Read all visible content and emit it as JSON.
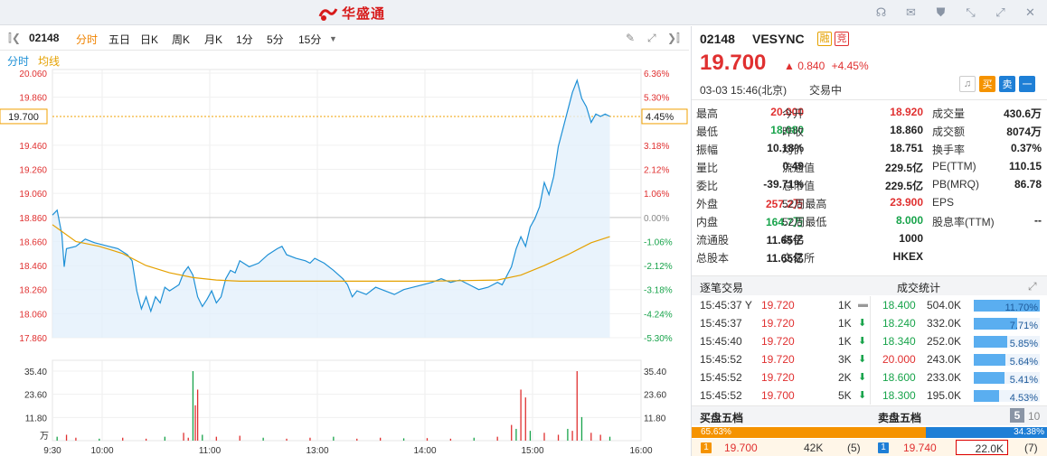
{
  "app": {
    "title": "华盛通"
  },
  "toolbar": {
    "code": "02148",
    "tabs": [
      "分时",
      "五日",
      "日K",
      "周K",
      "月K",
      "1分",
      "5分",
      "15分"
    ],
    "active_tab": "分时"
  },
  "chart_legend": {
    "line": "分时",
    "avg": "均线"
  },
  "chart_data": {
    "type": "line",
    "price_axis": [
      "20.060",
      "19.860",
      "19.460",
      "19.260",
      "19.060",
      "18.860",
      "18.660",
      "18.460",
      "18.260",
      "18.060",
      "17.860"
    ],
    "pct_axis": [
      "6.36%",
      "5.30%",
      "3.18%",
      "2.12%",
      "1.06%",
      "0.00%",
      "-1.06%",
      "-2.12%",
      "-3.18%",
      "-4.24%",
      "-5.30%"
    ],
    "current_price_label": "19.700",
    "current_pct_label": "4.45%",
    "prev_close": 18.86,
    "ylim": [
      17.86,
      20.06
    ],
    "vol_axis": [
      "35.40",
      "23.60",
      "11.80"
    ],
    "vol_unit": "万",
    "time_labels": [
      "9:30",
      "10:00",
      "11:00",
      "13:00",
      "14:00",
      "15:00",
      "16:00"
    ],
    "price_series": [
      [
        0,
        18.88
      ],
      [
        2,
        18.92
      ],
      [
        4,
        18.72
      ],
      [
        5,
        18.45
      ],
      [
        6,
        18.6
      ],
      [
        10,
        18.62
      ],
      [
        14,
        18.68
      ],
      [
        18,
        18.65
      ],
      [
        24,
        18.62
      ],
      [
        28,
        18.6
      ],
      [
        32,
        18.55
      ],
      [
        34,
        18.5
      ],
      [
        36,
        18.25
      ],
      [
        38,
        18.1
      ],
      [
        40,
        18.2
      ],
      [
        42,
        18.08
      ],
      [
        44,
        18.2
      ],
      [
        46,
        18.15
      ],
      [
        48,
        18.28
      ],
      [
        50,
        18.25
      ],
      [
        54,
        18.3
      ],
      [
        56,
        18.4
      ],
      [
        58,
        18.45
      ],
      [
        60,
        18.38
      ],
      [
        62,
        18.2
      ],
      [
        64,
        18.12
      ],
      [
        66,
        18.18
      ],
      [
        68,
        18.25
      ],
      [
        70,
        18.15
      ],
      [
        72,
        18.2
      ],
      [
        74,
        18.35
      ],
      [
        76,
        18.42
      ],
      [
        78,
        18.4
      ],
      [
        80,
        18.5
      ],
      [
        84,
        18.45
      ],
      [
        88,
        18.48
      ],
      [
        92,
        18.55
      ],
      [
        96,
        18.6
      ],
      [
        98,
        18.62
      ],
      [
        100,
        18.55
      ],
      [
        104,
        18.52
      ],
      [
        108,
        18.5
      ],
      [
        110,
        18.48
      ],
      [
        112,
        18.52
      ],
      [
        116,
        18.48
      ],
      [
        120,
        18.42
      ],
      [
        124,
        18.35
      ],
      [
        126,
        18.3
      ],
      [
        128,
        18.2
      ],
      [
        130,
        18.25
      ],
      [
        134,
        18.22
      ],
      [
        138,
        18.28
      ],
      [
        142,
        18.25
      ],
      [
        146,
        18.22
      ],
      [
        150,
        18.26
      ],
      [
        154,
        18.28
      ],
      [
        158,
        18.3
      ],
      [
        162,
        18.32
      ],
      [
        166,
        18.35
      ],
      [
        170,
        18.32
      ],
      [
        174,
        18.34
      ],
      [
        178,
        18.3
      ],
      [
        182,
        18.26
      ],
      [
        186,
        18.28
      ],
      [
        190,
        18.32
      ],
      [
        192,
        18.3
      ],
      [
        196,
        18.45
      ],
      [
        198,
        18.6
      ],
      [
        200,
        18.7
      ],
      [
        202,
        18.62
      ],
      [
        204,
        18.78
      ],
      [
        206,
        18.85
      ],
      [
        208,
        18.95
      ],
      [
        210,
        19.15
      ],
      [
        212,
        19.05
      ],
      [
        214,
        19.2
      ],
      [
        216,
        19.45
      ],
      [
        218,
        19.6
      ],
      [
        220,
        19.75
      ],
      [
        222,
        19.9
      ],
      [
        224,
        20.0
      ],
      [
        226,
        19.85
      ],
      [
        228,
        19.78
      ],
      [
        230,
        19.65
      ],
      [
        232,
        19.72
      ],
      [
        234,
        19.7
      ],
      [
        236,
        19.72
      ],
      [
        238,
        19.7
      ]
    ],
    "avg_series": [
      [
        0,
        18.8
      ],
      [
        10,
        18.66
      ],
      [
        20,
        18.62
      ],
      [
        30,
        18.56
      ],
      [
        40,
        18.46
      ],
      [
        50,
        18.4
      ],
      [
        60,
        18.36
      ],
      [
        70,
        18.34
      ],
      [
        80,
        18.33
      ],
      [
        100,
        18.33
      ],
      [
        130,
        18.33
      ],
      [
        160,
        18.33
      ],
      [
        190,
        18.34
      ],
      [
        200,
        18.38
      ],
      [
        210,
        18.46
      ],
      [
        220,
        18.55
      ],
      [
        230,
        18.65
      ],
      [
        238,
        18.7
      ]
    ],
    "volume_series": [
      [
        2,
        2
      ],
      [
        6,
        3
      ],
      [
        10,
        1.5
      ],
      [
        20,
        1
      ],
      [
        30,
        1.5
      ],
      [
        40,
        1
      ],
      [
        48,
        2
      ],
      [
        56,
        4
      ],
      [
        58,
        1.5
      ],
      [
        60,
        35.4
      ],
      [
        61,
        18
      ],
      [
        62,
        26
      ],
      [
        64,
        3
      ],
      [
        70,
        2
      ],
      [
        80,
        2.5
      ],
      [
        90,
        1.5
      ],
      [
        100,
        1
      ],
      [
        110,
        1.5
      ],
      [
        120,
        2
      ],
      [
        130,
        1
      ],
      [
        140,
        1.5
      ],
      [
        150,
        1.2
      ],
      [
        160,
        1.3
      ],
      [
        170,
        1
      ],
      [
        180,
        1.5
      ],
      [
        190,
        2
      ],
      [
        196,
        8
      ],
      [
        198,
        6
      ],
      [
        200,
        26
      ],
      [
        202,
        22
      ],
      [
        204,
        5
      ],
      [
        210,
        4
      ],
      [
        216,
        3
      ],
      [
        220,
        6
      ],
      [
        222,
        5
      ],
      [
        224,
        35.4
      ],
      [
        226,
        12
      ],
      [
        230,
        4
      ],
      [
        234,
        3
      ],
      [
        238,
        2
      ]
    ]
  },
  "quote": {
    "code": "02148",
    "name": "VESYNC",
    "tag1": "融",
    "tag2": "竞",
    "price": "19.700",
    "change": "0.840",
    "change_pct": "+4.45%",
    "date": "03-03",
    "time": "15:46(北京)",
    "status": "交易中",
    "btn_buy": "买",
    "btn_sell": "卖",
    "btn_min": "一"
  },
  "stats": [
    [
      [
        "最高",
        "20.000",
        "red"
      ],
      [
        "今开",
        "18.920",
        "red"
      ],
      [
        "成交量",
        "430.6万",
        ""
      ]
    ],
    [
      [
        "最低",
        "18.080",
        "green"
      ],
      [
        "昨收",
        "18.860",
        ""
      ],
      [
        "成交额",
        "8074万",
        ""
      ]
    ],
    [
      [
        "振幅",
        "10.18%",
        ""
      ],
      [
        "均价",
        "18.751",
        ""
      ],
      [
        "换手率",
        "0.37%",
        ""
      ]
    ],
    [
      [
        "量比",
        "0.49",
        ""
      ],
      [
        "流通值",
        "229.5亿",
        ""
      ],
      [
        "PE(TTM)",
        "110.15",
        ""
      ]
    ],
    [
      [
        "委比",
        "-39.71%",
        ""
      ],
      [
        "总市值",
        "229.5亿",
        ""
      ],
      [
        "PB(MRQ)",
        "86.78",
        ""
      ]
    ],
    [
      [
        "外盘",
        "257.2万",
        "red"
      ],
      [
        "52周最高",
        "23.900",
        "red"
      ],
      [
        "EPS",
        "",
        ""
      ]
    ],
    [
      [
        "内盘",
        "164.7万",
        "green"
      ],
      [
        "52周最低",
        "8.000",
        "green"
      ],
      [
        "股息率(TTM)",
        "--",
        ""
      ]
    ],
    [
      [
        "流通股",
        "11.65亿",
        ""
      ],
      [
        "每手",
        "1000",
        ""
      ],
      [
        "",
        "",
        ""
      ]
    ],
    [
      [
        "总股本",
        "11.65亿",
        ""
      ],
      [
        "交易所",
        "HKEX",
        ""
      ],
      [
        "",
        "",
        ""
      ]
    ]
  ],
  "section_trades": {
    "left": "逐笔交易",
    "right": "成交统计"
  },
  "trades": [
    {
      "time": "15:45:37 Y",
      "price": "19.720",
      "vol": "1K",
      "dir": "flat"
    },
    {
      "time": "15:45:37",
      "price": "19.720",
      "vol": "1K",
      "dir": "down"
    },
    {
      "time": "15:45:40",
      "price": "19.720",
      "vol": "1K",
      "dir": "down"
    },
    {
      "time": "15:45:52",
      "price": "19.720",
      "vol": "3K",
      "dir": "down"
    },
    {
      "time": "15:45:52",
      "price": "19.720",
      "vol": "2K",
      "dir": "down"
    },
    {
      "time": "15:45:52",
      "price": "19.700",
      "vol": "5K",
      "dir": "down"
    }
  ],
  "volstats": [
    {
      "price": "18.400",
      "vol": "504.0K",
      "pct": "11.70%",
      "color": "green",
      "frac": 1.0
    },
    {
      "price": "18.240",
      "vol": "332.0K",
      "pct": "7.71%",
      "color": "green",
      "frac": 0.66
    },
    {
      "price": "18.340",
      "vol": "252.0K",
      "pct": "5.85%",
      "color": "green",
      "frac": 0.5
    },
    {
      "price": "20.000",
      "vol": "243.0K",
      "pct": "5.64%",
      "color": "red",
      "frac": 0.48
    },
    {
      "price": "18.600",
      "vol": "233.0K",
      "pct": "5.41%",
      "color": "green",
      "frac": 0.46
    },
    {
      "price": "18.300",
      "vol": "195.0K",
      "pct": "4.53%",
      "color": "green",
      "frac": 0.39
    }
  ],
  "section_depth": {
    "left": "买盘五档",
    "right": "卖盘五档",
    "n5": "5",
    "n10": "10"
  },
  "depth": {
    "buy_pct": "65.63%",
    "sell_pct": "34.38%",
    "buy_frac": 0.6563
  },
  "orderbook": {
    "bid": {
      "n": "1",
      "price": "19.700",
      "vol": "42K",
      "cnt": "(5)"
    },
    "ask": {
      "n": "1",
      "price": "19.740",
      "vol": "22.0K",
      "cnt": "(7)"
    }
  }
}
